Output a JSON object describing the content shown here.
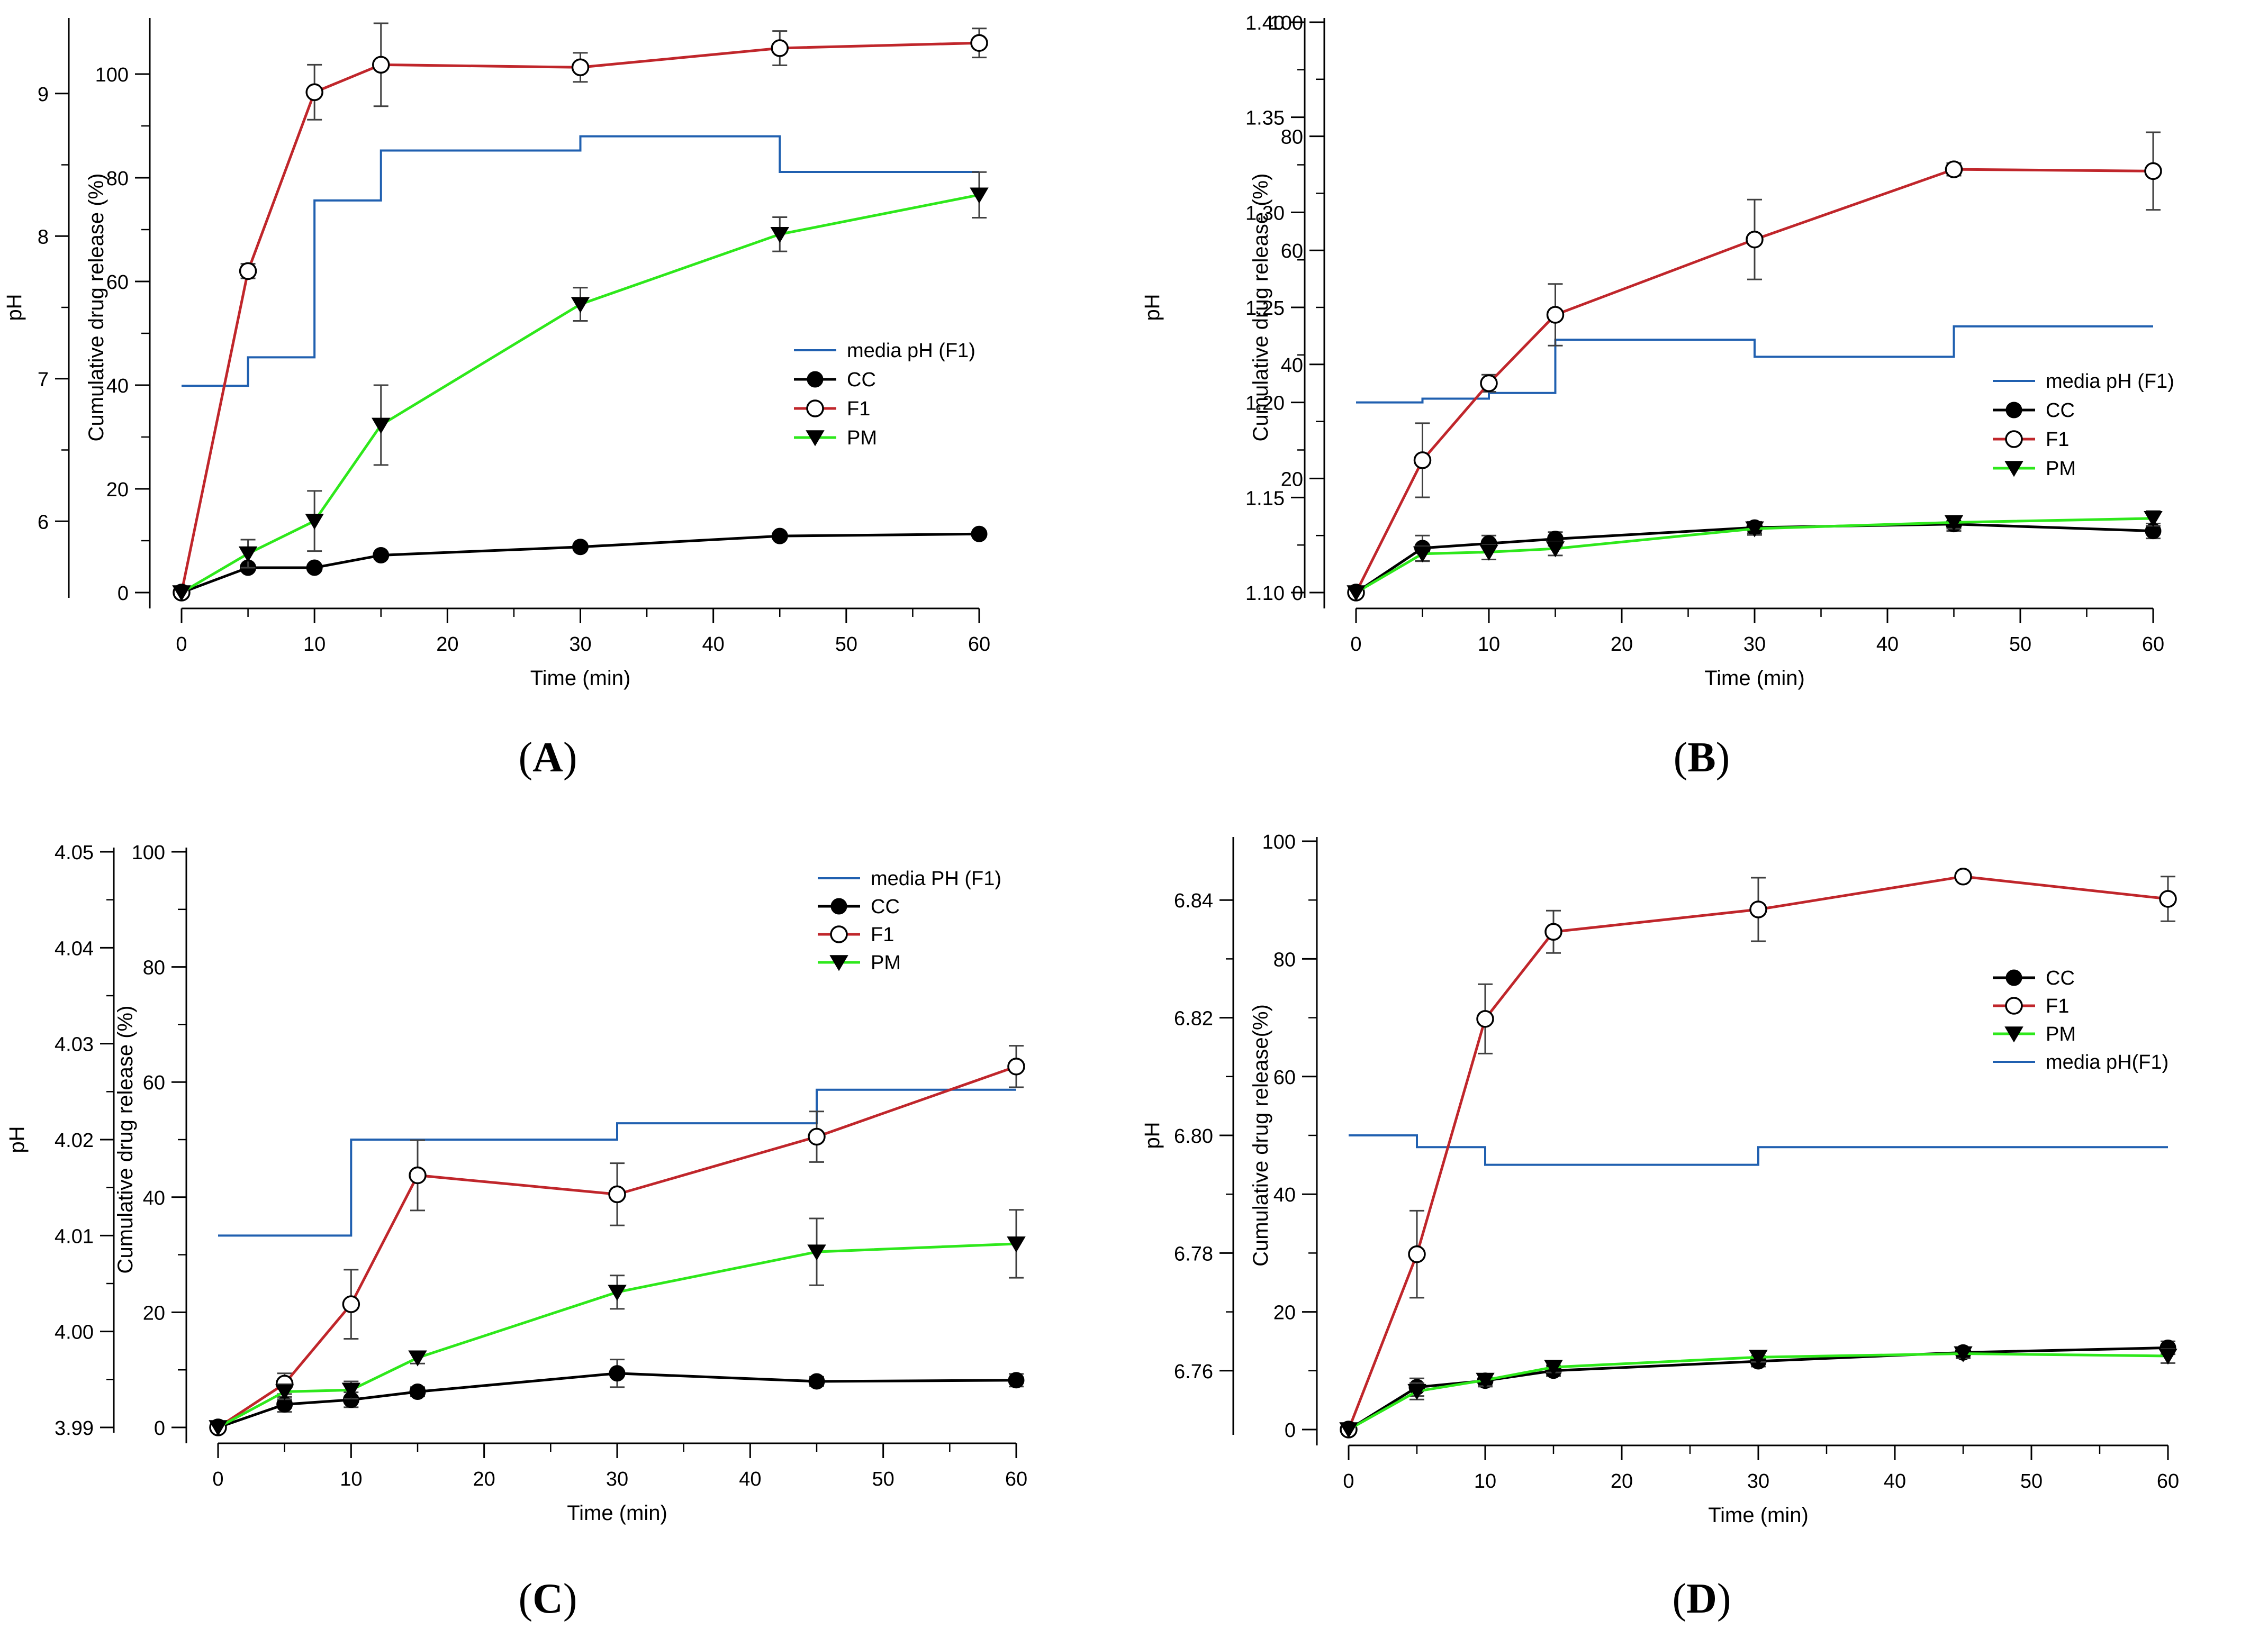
{
  "figure": {
    "caption_labels": [
      "A",
      "B",
      "C",
      "D"
    ]
  },
  "colors": {
    "ph_line": "#2060b0",
    "cc": "#000000",
    "f1": "#c0262b",
    "pm": "#2ee81b",
    "error_bar": "#404040",
    "axis": "#000000"
  },
  "chart_data": [
    {
      "type": "line",
      "label": "A",
      "xlabel": "Time (min)",
      "ylabel_left": "Cumulative drug release (%)",
      "ylabel_right_axis": "pH",
      "xlim": [
        0,
        60
      ],
      "xticks": [
        0,
        10,
        20,
        30,
        40,
        50,
        60
      ],
      "ylim": [
        0,
        110
      ],
      "yticks": [
        0,
        20,
        40,
        60,
        80,
        100
      ],
      "ph_lim": [
        5.5,
        9.5
      ],
      "ph_ticks": [
        6,
        7,
        8,
        9
      ],
      "legend_position": "right-middle",
      "legend": [
        {
          "key": "ph",
          "label": "media pH (F1)"
        },
        {
          "key": "cc",
          "label": "CC"
        },
        {
          "key": "f1",
          "label": "F1"
        },
        {
          "key": "pm",
          "label": "PM"
        }
      ],
      "ph_step": {
        "x": [
          0,
          5,
          10,
          15,
          30,
          45,
          60
        ],
        "y": [
          6.95,
          7.15,
          8.25,
          8.6,
          8.7,
          8.45,
          8.45
        ]
      },
      "series": [
        {
          "key": "cc",
          "name": "CC",
          "marker": "filled-circle",
          "x": [
            0,
            5,
            10,
            15,
            30,
            45,
            60
          ],
          "y": [
            0,
            4.8,
            4.8,
            7.2,
            8.8,
            10.9,
            11.3
          ],
          "err": [
            0,
            0.5,
            0.5,
            0.5,
            0.5,
            0.5,
            0.5
          ]
        },
        {
          "key": "f1",
          "name": "F1",
          "marker": "open-circle",
          "x": [
            0,
            5,
            10,
            15,
            30,
            45,
            60
          ],
          "y": [
            0,
            62,
            96.5,
            101.8,
            101.3,
            105,
            106
          ],
          "err": [
            0,
            1.4,
            5.3,
            8,
            2.8,
            3.3,
            2.8
          ]
        },
        {
          "key": "pm",
          "name": "PM",
          "marker": "filled-triangle-down",
          "x": [
            0,
            5,
            10,
            15,
            30,
            45,
            60
          ],
          "y": [
            0,
            7.5,
            13.8,
            32.3,
            55.6,
            69.1,
            76.7
          ],
          "err": [
            0,
            2.7,
            5.8,
            7.7,
            3.2,
            3.3,
            4.4
          ]
        }
      ]
    },
    {
      "type": "line",
      "label": "B",
      "xlabel": "Time (min)",
      "ylabel_left": "Cumulative drug release (%)",
      "ylabel_right_axis": "pH",
      "xlim": [
        0,
        60
      ],
      "xticks": [
        0,
        10,
        20,
        30,
        40,
        50,
        60
      ],
      "ylim": [
        0,
        100
      ],
      "yticks": [
        0,
        20,
        40,
        60,
        80,
        100
      ],
      "ph_lim": [
        1.1,
        1.4
      ],
      "ph_ticks": [
        1.1,
        1.15,
        1.2,
        1.25,
        1.3,
        1.35,
        1.4
      ],
      "legend_position": "right-middle",
      "legend": [
        {
          "key": "ph",
          "label": "media pH (F1)"
        },
        {
          "key": "cc",
          "label": "CC"
        },
        {
          "key": "f1",
          "label": "F1"
        },
        {
          "key": "pm",
          "label": "PM"
        }
      ],
      "ph_step": {
        "x": [
          0,
          5,
          10,
          15,
          30,
          45,
          60
        ],
        "y": [
          1.2,
          1.202,
          1.205,
          1.233,
          1.224,
          1.24,
          1.245
        ]
      },
      "series": [
        {
          "key": "cc",
          "name": "CC",
          "marker": "filled-circle",
          "x": [
            0,
            5,
            10,
            15,
            30,
            45,
            60
          ],
          "y": [
            0,
            7.8,
            8.6,
            9.4,
            11.4,
            12,
            10.8
          ],
          "err": [
            0,
            2.2,
            1.4,
            1.2,
            1.0,
            1.2,
            1.3
          ]
        },
        {
          "key": "f1",
          "name": "F1",
          "marker": "open-circle",
          "x": [
            0,
            5,
            10,
            15,
            30,
            45,
            60
          ],
          "y": [
            0,
            23.2,
            36.7,
            48.7,
            61.9,
            74.2,
            73.9
          ],
          "err": [
            0,
            6.5,
            1.5,
            5.4,
            7.0,
            1.1,
            6.8
          ]
        },
        {
          "key": "pm",
          "name": "PM",
          "marker": "filled-triangle-down",
          "x": [
            0,
            5,
            10,
            15,
            30,
            45,
            60
          ],
          "y": [
            0,
            6.8,
            7.1,
            7.7,
            11.2,
            12.3,
            13
          ],
          "err": [
            0,
            1.3,
            1.3,
            1.2,
            1.1,
            1.1,
            1.3
          ]
        }
      ]
    },
    {
      "type": "line",
      "label": "C",
      "xlabel": "Time (min)",
      "ylabel_left": "Cumulative drug release (%)",
      "ylabel_right_axis": "pH",
      "xlim": [
        0,
        60
      ],
      "xticks": [
        0,
        10,
        20,
        30,
        40,
        50,
        60
      ],
      "ylim": [
        0,
        100
      ],
      "yticks": [
        0,
        20,
        40,
        60,
        80,
        100
      ],
      "ph_lim": [
        3.99,
        4.05
      ],
      "ph_ticks": [
        3.99,
        4.0,
        4.01,
        4.02,
        4.03,
        4.04,
        4.05
      ],
      "legend_position": "top-right",
      "legend": [
        {
          "key": "ph",
          "label": "media PH (F1)"
        },
        {
          "key": "cc",
          "label": "CC"
        },
        {
          "key": "f1",
          "label": "F1"
        },
        {
          "key": "pm",
          "label": "PM"
        }
      ],
      "ph_step": {
        "x": [
          0,
          10,
          30,
          45,
          60
        ],
        "y": [
          4.01,
          4.02,
          4.0217,
          4.0252,
          4.0252
        ]
      },
      "series": [
        {
          "key": "cc",
          "name": "CC",
          "marker": "filled-circle",
          "x": [
            0,
            5,
            10,
            15,
            30,
            45,
            60
          ],
          "y": [
            0,
            4,
            4.8,
            6.2,
            9.4,
            8,
            8.2
          ],
          "err": [
            0,
            1.3,
            1.3,
            0.8,
            2.4,
            0.8,
            1.1
          ]
        },
        {
          "key": "f1",
          "name": "F1",
          "marker": "open-circle",
          "x": [
            0,
            5,
            10,
            15,
            30,
            45,
            60
          ],
          "y": [
            0,
            7.6,
            21.4,
            43.8,
            40.5,
            50.5,
            62.7
          ],
          "err": [
            0,
            1.8,
            6,
            6.1,
            5.4,
            4.4,
            3.6
          ]
        },
        {
          "key": "pm",
          "name": "PM",
          "marker": "filled-triangle-down",
          "x": [
            0,
            5,
            10,
            15,
            30,
            45,
            60
          ],
          "y": [
            0,
            6.2,
            6.5,
            12.1,
            23.5,
            30.5,
            31.9
          ],
          "err": [
            0,
            1.3,
            1.5,
            1.0,
            2.9,
            5.8,
            5.9
          ]
        }
      ]
    },
    {
      "type": "line",
      "label": "D",
      "xlabel": "Time (min)",
      "ylabel_left": "Cumulative drug release(%)",
      "ylabel_right_axis": "pH",
      "xlim": [
        0,
        60
      ],
      "xticks": [
        0,
        10,
        20,
        30,
        40,
        50,
        60
      ],
      "ylim": [
        0,
        100
      ],
      "yticks": [
        0,
        20,
        40,
        60,
        80,
        100
      ],
      "ph_lim": [
        6.75,
        6.85
      ],
      "ph_ticks": [
        6.76,
        6.78,
        6.8,
        6.82,
        6.84
      ],
      "legend_position": "right-middle",
      "legend": [
        {
          "key": "cc",
          "label": "CC"
        },
        {
          "key": "f1",
          "label": "F1"
        },
        {
          "key": "pm",
          "label": "PM"
        },
        {
          "key": "ph",
          "label": "media pH(F1)"
        }
      ],
      "ph_step": {
        "x": [
          0,
          5,
          10,
          30,
          60
        ],
        "y": [
          6.8,
          6.798,
          6.795,
          6.798,
          6.795
        ]
      },
      "series": [
        {
          "key": "cc",
          "name": "CC",
          "marker": "filled-circle",
          "x": [
            0,
            5,
            10,
            15,
            30,
            45,
            60
          ],
          "y": [
            0,
            7.2,
            8.3,
            10,
            11.6,
            13.1,
            13.9
          ],
          "err": [
            0,
            1.5,
            1.0,
            0.9,
            0.9,
            0.8,
            1.1
          ]
        },
        {
          "key": "f1",
          "name": "F1",
          "marker": "open-circle",
          "x": [
            0,
            5,
            10,
            15,
            30,
            45,
            60
          ],
          "y": [
            0,
            29.8,
            69.8,
            84.6,
            88.4,
            94,
            90.2
          ],
          "err": [
            0,
            7.4,
            5.9,
            3.6,
            5.4,
            0.5,
            3.8
          ]
        },
        {
          "key": "pm",
          "name": "PM",
          "marker": "filled-triangle-down",
          "x": [
            0,
            5,
            10,
            15,
            30,
            45,
            60
          ],
          "y": [
            0,
            6.5,
            8.4,
            10.6,
            12.3,
            12.9,
            12.5
          ],
          "err": [
            0,
            1.4,
            1.0,
            0.9,
            0.8,
            0.8,
            1.2
          ]
        }
      ]
    }
  ]
}
